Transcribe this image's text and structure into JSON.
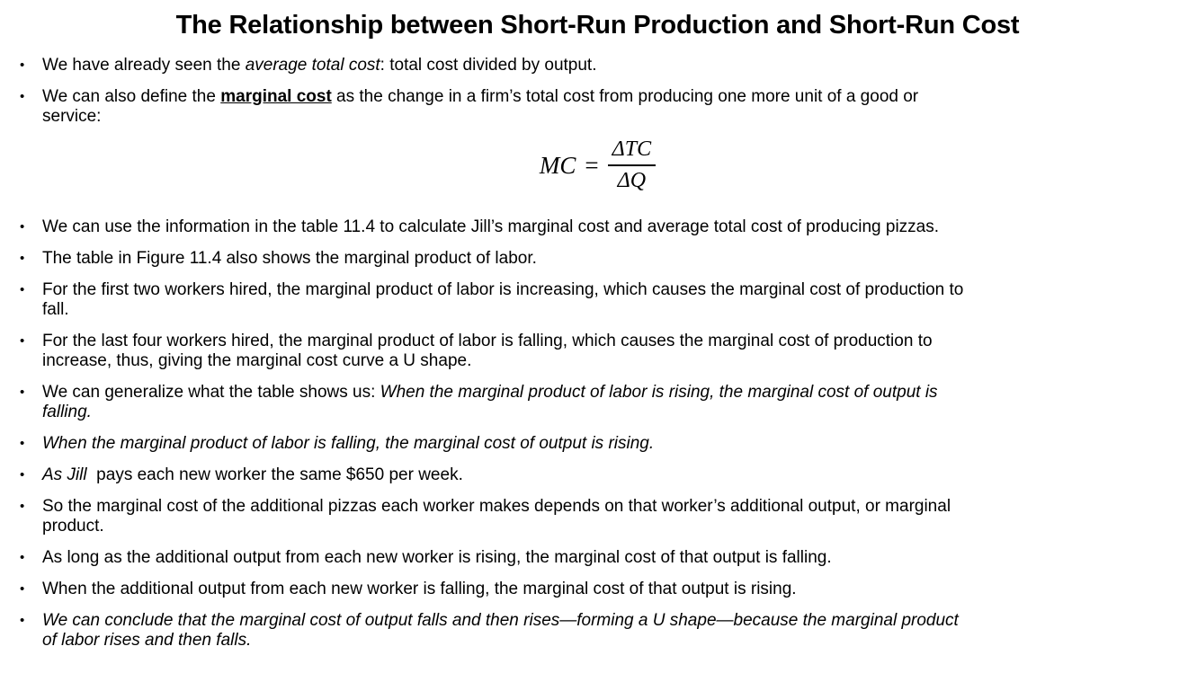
{
  "title": "The Relationship between Short-Run Production and Short-Run Cost",
  "bullet_char": "•",
  "formula": {
    "lhs": "MC",
    "equals": "=",
    "numerator": "ΔTC",
    "denominator": "ΔQ"
  },
  "bullets_top": [
    {
      "segments": [
        {
          "text": "We have already seen the ",
          "style": "normal"
        },
        {
          "text": "average total cost",
          "style": "italic"
        },
        {
          "text": ": total cost divided by output.",
          "style": "normal"
        }
      ]
    },
    {
      "segments": [
        {
          "text": "We can also define the ",
          "style": "normal"
        },
        {
          "text": "marginal cost",
          "style": "bold-underline"
        },
        {
          "text": " as the change in a firm’s total cost from producing one more unit of a good or\nservice:",
          "style": "normal"
        }
      ]
    }
  ],
  "bullets_bottom": [
    {
      "segments": [
        {
          "text": "We can use the information in the table 11.4 to calculate Jill’s marginal cost and average total cost of producing pizzas.",
          "style": "normal"
        }
      ]
    },
    {
      "segments": [
        {
          "text": "The table in Figure 11.4 also shows the marginal product of labor.",
          "style": "normal"
        }
      ]
    },
    {
      "segments": [
        {
          "text": "For the first two workers hired, the marginal product of labor is increasing, which causes the marginal cost of production to\nfall.",
          "style": "normal"
        }
      ]
    },
    {
      "segments": [
        {
          "text": "For the last four workers hired, the marginal product of labor is falling, which causes the marginal cost of production to\nincrease, thus, giving the marginal cost curve a U shape.",
          "style": "normal"
        }
      ]
    },
    {
      "segments": [
        {
          "text": "We can generalize what the table shows us: ",
          "style": "normal"
        },
        {
          "text": "When the marginal product of labor is rising, the marginal cost of output is\nfalling.",
          "style": "italic"
        }
      ]
    },
    {
      "segments": [
        {
          "text": "When the marginal product of labor is falling, the marginal cost of output is rising.",
          "style": "italic"
        }
      ]
    },
    {
      "segments": [
        {
          "text": "As Jill",
          "style": "italic"
        },
        {
          "text": "  pays each new worker the same $650 per week.",
          "style": "normal"
        }
      ]
    },
    {
      "segments": [
        {
          "text": "So the marginal cost of the additional pizzas each worker makes depends on that worker’s additional output, or marginal\nproduct.",
          "style": "normal"
        }
      ]
    },
    {
      "segments": [
        {
          "text": "As long as the additional output from each new worker is rising, the marginal cost of that output is falling.",
          "style": "normal"
        }
      ]
    },
    {
      "segments": [
        {
          "text": "When the additional output from each new worker is falling, the marginal cost of that output is rising.",
          "style": "normal"
        }
      ]
    },
    {
      "segments": [
        {
          "text": "We can conclude that the marginal cost of output falls and then rises—forming a U shape—because the marginal product\nof labor rises and then falls.",
          "style": "italic"
        }
      ]
    }
  ]
}
